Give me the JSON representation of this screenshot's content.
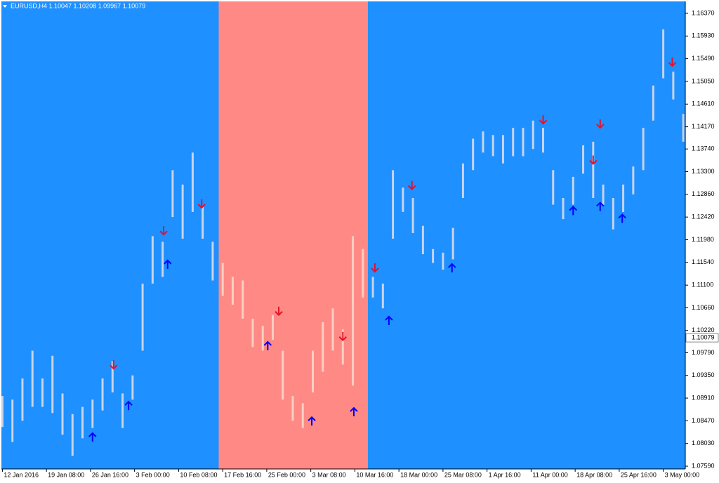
{
  "chart_data": {
    "type": "price_bars",
    "title": "EURUSD,H4  1.10047 1.10208 1.09967 1.10079",
    "background_color": "#1e90ff",
    "zone_color": "#ff8a85",
    "zone": [
      216,
      365
    ],
    "bar_color": "#c9d3e6",
    "zone_bar_color": "#f7cfc4",
    "x": [
      0,
      10,
      20,
      30,
      40,
      50,
      60,
      70,
      80,
      90,
      100,
      110,
      120,
      130,
      140,
      150,
      160,
      170,
      180,
      190,
      200,
      210,
      220,
      230,
      240,
      250,
      260,
      270,
      280,
      290,
      300,
      310,
      320,
      330,
      340,
      350,
      360,
      370,
      380,
      390,
      400,
      410,
      420,
      430,
      440,
      450,
      460,
      470,
      480,
      490,
      500,
      510,
      520,
      530,
      540,
      550,
      560,
      570,
      580,
      590,
      600,
      610,
      620,
      630,
      640,
      650,
      660,
      670,
      680
    ],
    "high": [
      1.0895,
      1.0888,
      1.0929,
      1.0983,
      1.0929,
      1.0973,
      1.09,
      1.086,
      1.0874,
      1.0888,
      1.0929,
      1.0963,
      1.09,
      1.0935,
      1.1113,
      1.1205,
      1.1194,
      1.1333,
      1.1305,
      1.1367,
      1.1262,
      1.1194,
      1.1153,
      1.1126,
      1.1119,
      1.1045,
      1.1031,
      1.1052,
      1.0983,
      1.0895,
      1.0881,
      1.0983,
      1.1038,
      1.1065,
      1.1024,
      1.1205,
      1.118,
      1.1126,
      1.1113,
      1.1333,
      1.1299,
      1.1279,
      1.1225,
      1.118,
      1.1173,
      1.1221,
      1.1346,
      1.1394,
      1.1408,
      1.1401,
      1.1401,
      1.1415,
      1.1415,
      1.1429,
      1.1415,
      1.1333,
      1.1279,
      1.132,
      1.1381,
      1.1388,
      1.1305,
      1.1279,
      1.1305,
      1.134,
      1.1415,
      1.1497,
      1.1606,
      1.1524,
      1.1442
    ],
    "low": [
      1.0835,
      1.0806,
      1.0847,
      1.0874,
      1.0874,
      1.0862,
      1.082,
      1.0779,
      1.0813,
      1.0833,
      1.0867,
      1.0902,
      1.0833,
      1.0888,
      1.0983,
      1.1113,
      1.1126,
      1.1242,
      1.12,
      1.1252,
      1.12,
      1.1119,
      1.1089,
      1.1072,
      1.1045,
      1.099,
      1.0983,
      1.1004,
      1.0888,
      1.0847,
      1.0833,
      1.0902,
      1.0942,
      1.0983,
      1.0956,
      1.0915,
      1.1086,
      1.1086,
      1.1065,
      1.12,
      1.1252,
      1.1211,
      1.117,
      1.1153,
      1.114,
      1.116,
      1.1279,
      1.1333,
      1.1367,
      1.136,
      1.1346,
      1.136,
      1.136,
      1.1374,
      1.1367,
      1.1266,
      1.1238,
      1.1266,
      1.1326,
      1.1279,
      1.1266,
      1.1218,
      1.1252,
      1.1286,
      1.1333,
      1.1429,
      1.1511,
      1.147,
      1.1388
    ],
    "sell_signals": {
      "color": "#e8102a",
      "x": [
        111,
        161,
        199,
        276,
        340,
        372,
        409,
        540,
        590,
        597,
        669
      ],
      "price": [
        1.0948,
        1.1208,
        1.126,
        1.1052,
        1.1003,
        1.1136,
        1.1296,
        1.1423,
        1.1345,
        1.1415,
        1.1535
      ]
    },
    "buy_signals": {
      "color": "#0000ff",
      "x": [
        90,
        126,
        165,
        265,
        309,
        351,
        386,
        449,
        570,
        597,
        619
      ],
      "price": [
        1.0823,
        1.0884,
        1.1158,
        1.1,
        1.0854,
        1.0872,
        1.1049,
        1.1151,
        1.1262,
        1.127,
        1.1247
      ]
    },
    "last_price": 1.10079,
    "xlim": [
      -1,
      682
    ],
    "ylim": [
      1.07536,
      1.16601
    ],
    "xticks": [
      {
        "value": 0,
        "label": "12 Jan 2016"
      },
      {
        "value": 44,
        "label": "19 Jan 08:00"
      },
      {
        "value": 88,
        "label": "26 Jan 16:00"
      },
      {
        "value": 132,
        "label": "3 Feb 00:00"
      },
      {
        "value": 176,
        "label": "10 Feb 08:00"
      },
      {
        "value": 220,
        "label": "17 Feb 16:00"
      },
      {
        "value": 264,
        "label": "25 Feb 00:00"
      },
      {
        "value": 308,
        "label": "3 Mar 08:00"
      },
      {
        "value": 352,
        "label": "10 Mar 16:00"
      },
      {
        "value": 396,
        "label": "18 Mar 00:00"
      },
      {
        "value": 440,
        "label": "25 Mar 08:00"
      },
      {
        "value": 484,
        "label": "1 Apr 16:00"
      },
      {
        "value": 528,
        "label": "11 Apr 00:00"
      },
      {
        "value": 572,
        "label": "18 Apr 08:00"
      },
      {
        "value": 616,
        "label": "25 Apr 16:00"
      },
      {
        "value": 660,
        "label": "3 May 00:00"
      }
    ],
    "yticks": [
      {
        "value": 1.1637,
        "label": "1.16370"
      },
      {
        "value": 1.1593,
        "label": "1.15930"
      },
      {
        "value": 1.1549,
        "label": "1.15490"
      },
      {
        "value": 1.1505,
        "label": "1.15050"
      },
      {
        "value": 1.1461,
        "label": "1.14610"
      },
      {
        "value": 1.1417,
        "label": "1.14170"
      },
      {
        "value": 1.1374,
        "label": "1.13740"
      },
      {
        "value": 1.133,
        "label": "1.13300"
      },
      {
        "value": 1.1286,
        "label": "1.12860"
      },
      {
        "value": 1.1242,
        "label": "1.12420"
      },
      {
        "value": 1.1198,
        "label": "1.11980"
      },
      {
        "value": 1.1154,
        "label": "1.11540"
      },
      {
        "value": 1.111,
        "label": "1.11100"
      },
      {
        "value": 1.1066,
        "label": "1.10660"
      },
      {
        "value": 1.1022,
        "label": "1.10220"
      },
      {
        "value": 1.0979,
        "label": "1.09790"
      },
      {
        "value": 1.0935,
        "label": "1.09350"
      },
      {
        "value": 1.0891,
        "label": "1.08910"
      },
      {
        "value": 1.0847,
        "label": "1.08470"
      },
      {
        "value": 1.0803,
        "label": "1.08030"
      },
      {
        "value": 1.0759,
        "label": "1.07590"
      }
    ]
  }
}
